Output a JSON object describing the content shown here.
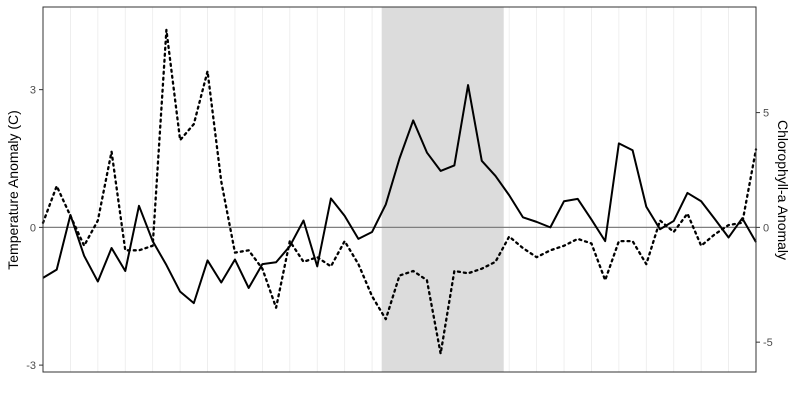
{
  "chart_data": {
    "type": "line",
    "title": "",
    "ylabel_left": "Temperature Anomaly (C)",
    "ylabel_right": "Chlorophyll-a Anomaly",
    "xlabel": "",
    "x": [
      0,
      1,
      2,
      3,
      4,
      5,
      6,
      7,
      8,
      9,
      10,
      11,
      12,
      13,
      14,
      15,
      16,
      17,
      18,
      19,
      20,
      21,
      22,
      23,
      24,
      25,
      26,
      27,
      28,
      29,
      30,
      31,
      32,
      33,
      34,
      35,
      36,
      37,
      38,
      39,
      40,
      41,
      42,
      43,
      44,
      45,
      46,
      47,
      48,
      49,
      50,
      51,
      52
    ],
    "xlim": [
      0,
      52
    ],
    "ylim_left": [
      -3.15,
      4.8
    ],
    "ylim_right": [
      -6.3,
      9.6
    ],
    "yticks_left": [
      -3,
      0,
      3
    ],
    "yticks_left_labels": [
      "-3",
      "0",
      "3"
    ],
    "yticks_right": [
      -5,
      0,
      5
    ],
    "yticks_right_labels": [
      "-5",
      "0",
      "5"
    ],
    "grid": true,
    "shaded_region": {
      "x_start": 24.7,
      "x_end": 33.6,
      "color": "#dcdcdc"
    },
    "zero_line": 0,
    "series": [
      {
        "axis": "left",
        "style": "solid",
        "color": "#000000",
        "values": [
          -1.1,
          -0.92,
          0.27,
          -0.62,
          -1.18,
          -0.45,
          -0.95,
          0.47,
          -0.3,
          -0.82,
          -1.4,
          -1.65,
          -0.72,
          -1.2,
          -0.7,
          -1.32,
          -0.8,
          -0.76,
          -0.41,
          0.15,
          -0.85,
          0.63,
          0.25,
          -0.25,
          -0.1,
          0.5,
          1.5,
          2.33,
          1.63,
          1.23,
          1.35,
          3.1,
          1.45,
          1.12,
          0.7,
          0.22,
          0.12,
          0.0,
          0.57,
          0.62,
          0.17,
          -0.3,
          1.83,
          1.68,
          0.45,
          -0.04,
          0.14,
          0.75,
          0.57,
          0.18,
          -0.22,
          0.2,
          -0.32
        ]
      },
      {
        "axis": "right",
        "style": "dotted",
        "color": "#000000",
        "values": [
          0.2,
          1.8,
          0.5,
          -0.8,
          0.3,
          3.3,
          -1.0,
          -1.0,
          -0.8,
          8.6,
          3.8,
          4.5,
          6.8,
          2.0,
          -1.1,
          -1.0,
          -1.8,
          -3.5,
          -0.6,
          -1.5,
          -1.3,
          -1.7,
          -0.6,
          -1.6,
          -3.0,
          -4.0,
          -2.1,
          -1.9,
          -2.3,
          -5.5,
          -1.9,
          -2.0,
          -1.8,
          -1.5,
          -0.4,
          -0.9,
          -1.3,
          -1.0,
          -0.8,
          -0.5,
          -0.7,
          -2.3,
          -0.6,
          -0.6,
          -1.6,
          0.3,
          -0.2,
          0.6,
          -0.8,
          -0.3,
          0.1,
          0.2,
          3.4
        ]
      }
    ]
  }
}
